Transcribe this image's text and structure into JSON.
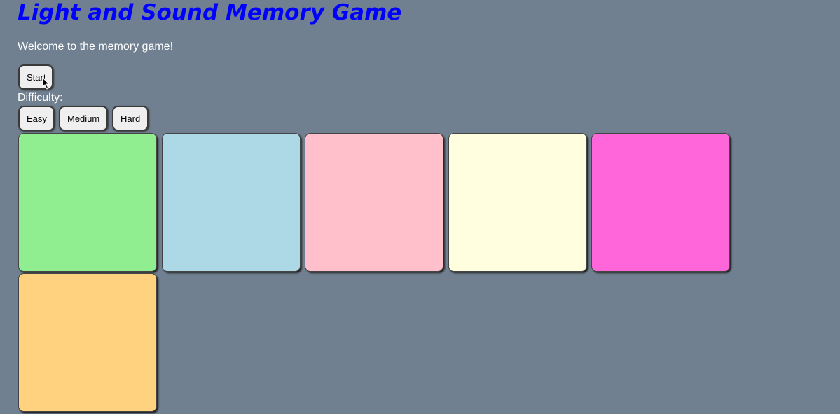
{
  "title": "Light and Sound Memory Game",
  "welcome": "Welcome to the memory game!",
  "start_label": "Start",
  "difficulty_label": "Difficulty:",
  "difficulty": [
    "Easy",
    "Medium",
    "Hard"
  ],
  "tiles": [
    {
      "color": "#90ee90"
    },
    {
      "color": "#add8e6"
    },
    {
      "color": "#ffc0cb"
    },
    {
      "color": "#ffffe0"
    },
    {
      "color": "#ff66d9"
    },
    {
      "color": "#ffd27f"
    }
  ]
}
